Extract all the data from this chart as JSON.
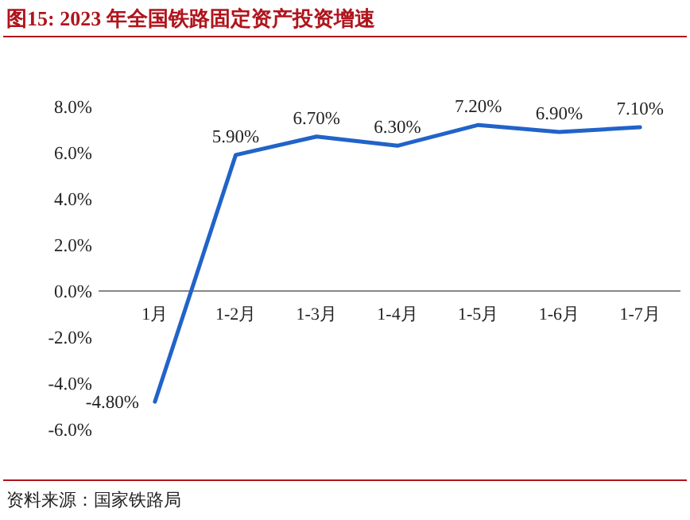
{
  "chart_data": {
    "type": "line",
    "title": "图15:  2023 年全国铁路固定资产投资增速",
    "categories": [
      "1月",
      "1-2月",
      "1-3月",
      "1-4月",
      "1-5月",
      "1-6月",
      "1-7月"
    ],
    "values": [
      -4.8,
      5.9,
      6.7,
      6.3,
      7.2,
      6.9,
      7.1
    ],
    "value_labels": [
      "-4.80%",
      "5.90%",
      "6.70%",
      "6.30%",
      "7.20%",
      "6.90%",
      "7.10%"
    ],
    "color": "#2163c8",
    "ylim": [
      -6,
      8
    ],
    "yticks": [
      {
        "value": -6,
        "label": "-6.0%"
      },
      {
        "value": -4,
        "label": "-4.0%"
      },
      {
        "value": -2,
        "label": "-2.0%"
      },
      {
        "value": 0,
        "label": "0.0%"
      },
      {
        "value": 2,
        "label": "2.0%"
      },
      {
        "value": 4,
        "label": "4.0%"
      },
      {
        "value": 6,
        "label": "6.0%"
      },
      {
        "value": 8,
        "label": "8.0%"
      }
    ],
    "marker": "none",
    "line_style": "solid",
    "annotations": [
      "资料来源：国家铁路局"
    ]
  }
}
